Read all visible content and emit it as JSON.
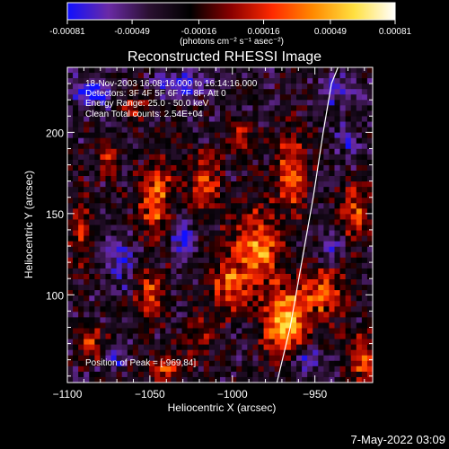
{
  "chart_data": {
    "type": "heatmap",
    "title": "Reconstructed RHESSI Image",
    "xlabel": "Heliocentric X (arcsec)",
    "ylabel": "Heliocentric Y (arcsec)",
    "xlim": [
      -1100,
      -915
    ],
    "ylim": [
      46,
      240
    ],
    "x_ticks": [
      -1100,
      -1050,
      -1000,
      -950
    ],
    "x_tick_labels": [
      "−1100",
      "−1050",
      "−1000",
      "−950"
    ],
    "y_ticks": [
      100,
      150,
      200
    ],
    "y_tick_labels": [
      "100",
      "150",
      "200"
    ],
    "colorbar": {
      "min": -0.00081,
      "max": 0.00081,
      "ticks": [
        -0.00081,
        -0.00049,
        -0.00016,
        0.00016,
        0.00049,
        0.00081
      ],
      "tick_labels": [
        "-0.00081",
        "-0.00049",
        "-0.00016",
        "0.00016",
        "0.00049",
        "0.00081"
      ],
      "units": "(photons cm⁻² s⁻¹ asec⁻²)",
      "colors": [
        "#1010ff",
        "#6a2aa6",
        "#2a1030",
        "#000000",
        "#8a0000",
        "#ff2a00",
        "#ff8a00",
        "#ffe040",
        "#ffffff"
      ]
    },
    "annotations": [
      "18-Nov-2003 16:08:16.000 to 16:14:16.000",
      "Detectors: 3F 4F 5F 6F 7F 8F, Att 0",
      "Energy Range: 25.0 - 50.0 keV",
      "Clean     Total counts: 2.54E+04"
    ],
    "peak_label": "Position of Peak = [-969,84]",
    "peak": [
      -969,
      84
    ],
    "limb_curve": {
      "x": [
        -973,
        -965,
        -958,
        -951,
        -945,
        -940,
        -936
      ],
      "y": [
        46,
        80,
        120,
        160,
        200,
        230,
        240
      ]
    },
    "blobs": [
      {
        "x": -968,
        "y": 84,
        "sx": 9,
        "sy": 14,
        "amp": 1.0
      },
      {
        "x": -985,
        "y": 128,
        "sx": 10,
        "sy": 16,
        "amp": 0.85
      },
      {
        "x": -1046,
        "y": 158,
        "sx": 7,
        "sy": 16,
        "amp": 0.75
      },
      {
        "x": -1050,
        "y": 98,
        "sx": 6,
        "sy": 11,
        "amp": 0.6
      },
      {
        "x": -1040,
        "y": 55,
        "sx": 9,
        "sy": 5,
        "amp": 0.6
      },
      {
        "x": -1002,
        "y": 105,
        "sx": 8,
        "sy": 11,
        "amp": 0.7
      },
      {
        "x": -1016,
        "y": 168,
        "sx": 7,
        "sy": 13,
        "amp": 0.55
      },
      {
        "x": -965,
        "y": 175,
        "sx": 7,
        "sy": 17,
        "amp": 0.65
      },
      {
        "x": -925,
        "y": 150,
        "sx": 6,
        "sy": 12,
        "amp": 0.6
      },
      {
        "x": -945,
        "y": 100,
        "sx": 9,
        "sy": 11,
        "amp": 0.65
      },
      {
        "x": -920,
        "y": 60,
        "sx": 7,
        "sy": 10,
        "amp": 0.6
      },
      {
        "x": -1092,
        "y": 140,
        "sx": 4,
        "sy": 16,
        "amp": 0.55
      },
      {
        "x": -1085,
        "y": 70,
        "sx": 5,
        "sy": 7,
        "amp": 0.5
      },
      {
        "x": -1060,
        "y": 215,
        "sx": 6,
        "sy": 6,
        "amp": 0.45
      },
      {
        "x": -993,
        "y": 195,
        "sx": 5,
        "sy": 8,
        "amp": 0.45
      },
      {
        "x": -1020,
        "y": 75,
        "sx": 5,
        "sy": 9,
        "amp": 0.4
      },
      {
        "x": -1075,
        "y": 182,
        "sx": 4,
        "sy": 7,
        "amp": 0.55
      },
      {
        "x": -1030,
        "y": 230,
        "sx": 12,
        "sy": 5,
        "amp": -0.6
      },
      {
        "x": -1085,
        "y": 225,
        "sx": 10,
        "sy": 8,
        "amp": -0.55
      },
      {
        "x": -935,
        "y": 225,
        "sx": 10,
        "sy": 6,
        "amp": -0.5
      },
      {
        "x": -1068,
        "y": 120,
        "sx": 6,
        "sy": 10,
        "amp": -0.5
      },
      {
        "x": -1030,
        "y": 135,
        "sx": 5,
        "sy": 8,
        "amp": -0.55
      },
      {
        "x": -940,
        "y": 130,
        "sx": 5,
        "sy": 6,
        "amp": -0.5
      },
      {
        "x": -955,
        "y": 60,
        "sx": 6,
        "sy": 6,
        "amp": -0.45
      },
      {
        "x": -930,
        "y": 195,
        "sx": 5,
        "sy": 7,
        "amp": -0.4
      },
      {
        "x": -1070,
        "y": 60,
        "sx": 5,
        "sy": 5,
        "amp": -0.4
      }
    ]
  },
  "timestamp": "7-May-2022 03:09"
}
